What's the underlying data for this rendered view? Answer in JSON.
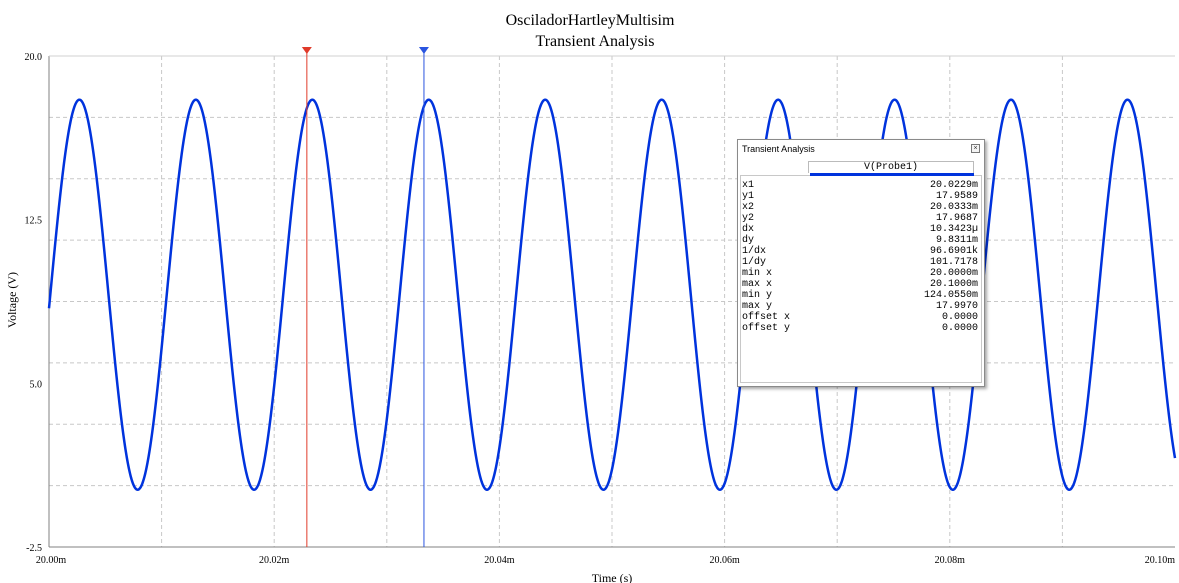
{
  "chart_data": {
    "type": "line",
    "title": "OsciladorHartleyMultisim",
    "subtitle": "Transient Analysis",
    "xlabel": "Time (s)",
    "ylabel": "Voltage (V)",
    "xlim": [
      0.02,
      0.0201
    ],
    "ylim": [
      -2.5,
      20.0
    ],
    "x_tick_labels": [
      "20.00m",
      "20.02m",
      "20.04m",
      "20.06m",
      "20.08m",
      "20.10m"
    ],
    "y_tick_labels": [
      "-2.5",
      "5.0",
      "12.5",
      "20.0"
    ],
    "grid": true,
    "series": [
      {
        "name": "V(Probe1)",
        "color": "#0033dd",
        "waveform": "sine",
        "min": 0.124,
        "max": 17.997,
        "period": 1.03423e-05,
        "first_peak_x": 0.0200027,
        "x_start": 0.02,
        "x_end": 0.0201
      }
    ],
    "cursors": [
      {
        "name": "cursor-1",
        "x": 0.0200229,
        "color": "#e03a2a"
      },
      {
        "name": "cursor-2",
        "x": 0.0200333,
        "color": "#2a55e0"
      }
    ]
  },
  "panel": {
    "title": "Transient Analysis",
    "close_icon": "close-icon",
    "column_header": "V(Probe1)",
    "series_color": "#0033dd",
    "rows": [
      {
        "label": "x1",
        "value": "20.0229m"
      },
      {
        "label": "y1",
        "value": "17.9589"
      },
      {
        "label": "x2",
        "value": "20.0333m"
      },
      {
        "label": "y2",
        "value": "17.9687"
      },
      {
        "label": "dx",
        "value": "10.3423µ"
      },
      {
        "label": "dy",
        "value": "9.8311m"
      },
      {
        "label": "1/dx",
        "value": "96.6901k"
      },
      {
        "label": "1/dy",
        "value": "101.7178"
      },
      {
        "label": "min x",
        "value": "20.0000m"
      },
      {
        "label": "max x",
        "value": "20.1000m"
      },
      {
        "label": "min y",
        "value": "124.0550m"
      },
      {
        "label": "max y",
        "value": "17.9970"
      },
      {
        "label": "offset x",
        "value": "0.0000"
      },
      {
        "label": "offset y",
        "value": "0.0000"
      }
    ]
  }
}
